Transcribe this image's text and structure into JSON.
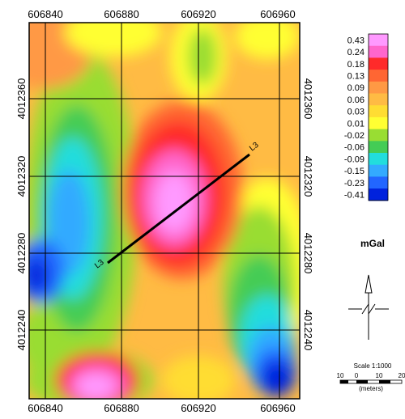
{
  "map": {
    "x_ticks": [
      "606840",
      "606880",
      "606920",
      "606960"
    ],
    "y_ticks": [
      "4012360",
      "4012320",
      "4012280",
      "4012240"
    ],
    "profile_label": "L3"
  },
  "legend": {
    "values": [
      "0.43",
      "0.24",
      "0.18",
      "0.13",
      "0.09",
      "0.06",
      "0.03",
      "0.01",
      "-0.02",
      "-0.06",
      "-0.09",
      "-0.15",
      "-0.23",
      "-0.41"
    ],
    "colors": [
      "#ff99ff",
      "#ff66cc",
      "#ff2a2a",
      "#ff6633",
      "#ff9944",
      "#ffbb44",
      "#ffdd33",
      "#ffff33",
      "#99dd33",
      "#44cc55",
      "#22dddd",
      "#33aaff",
      "#2266ff",
      "#0022dd"
    ],
    "unit": "mGal"
  },
  "scale": {
    "text": "Scale 1:1000",
    "ticks": [
      "10",
      "0",
      "10",
      "20"
    ],
    "units": "(meters)"
  },
  "colors": {
    "frame": "#000000",
    "grid": "#000000",
    "profile_line": "#000000"
  }
}
